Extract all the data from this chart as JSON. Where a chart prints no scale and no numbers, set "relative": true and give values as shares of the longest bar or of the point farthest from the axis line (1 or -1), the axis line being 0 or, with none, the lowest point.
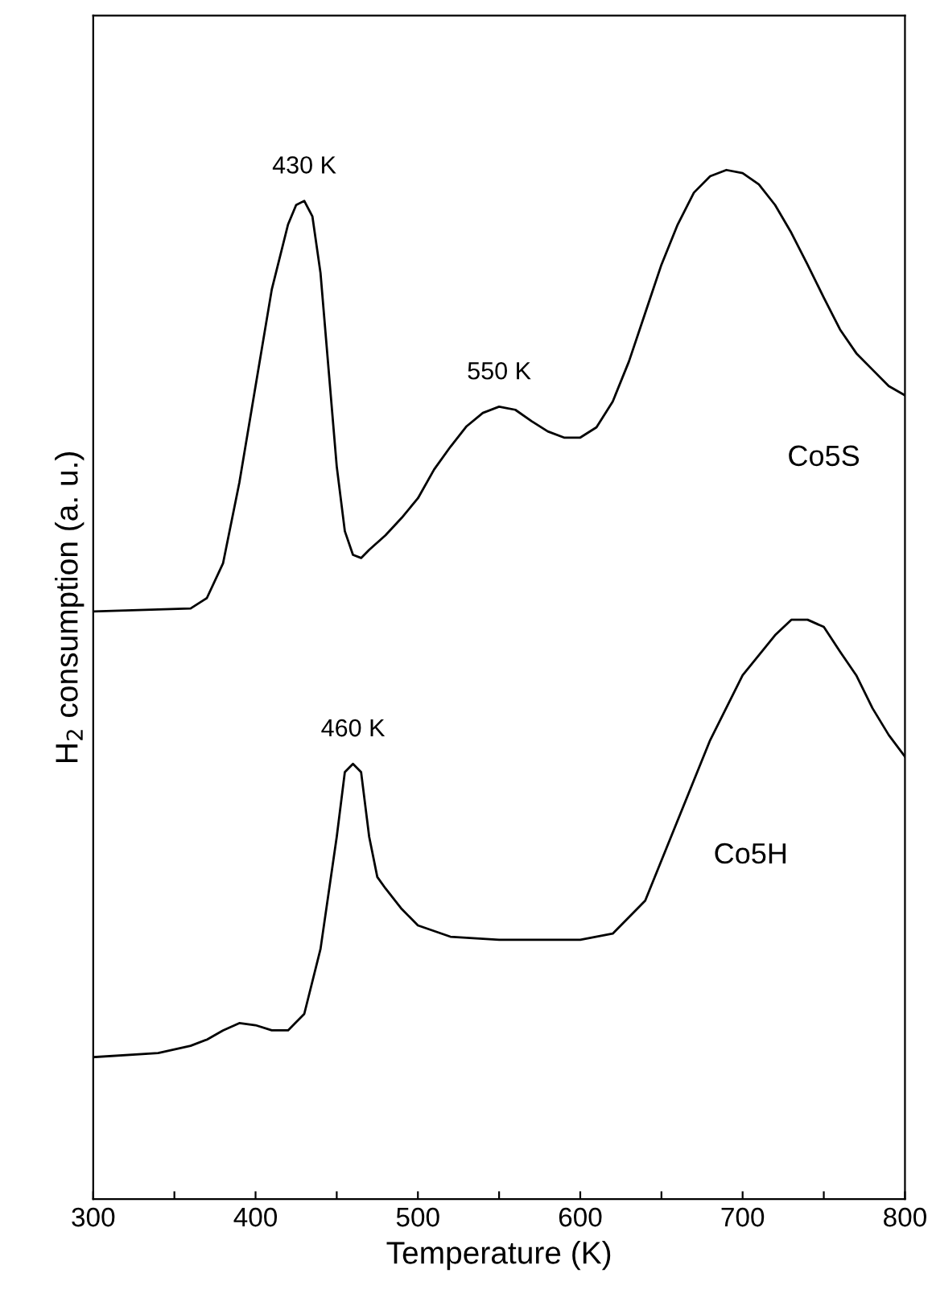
{
  "chart_data": {
    "type": "line",
    "relative": true,
    "xlabel": "Temperature (K)",
    "ylabel": "H$_{2}$ consumption (a. u.)",
    "xlim": [
      300,
      800
    ],
    "xticks": [
      300,
      {
        "value": 350,
        "label": null
      },
      400,
      {
        "value": 450,
        "label": null
      },
      500,
      {
        "value": 550,
        "label": null
      },
      600,
      {
        "value": 650,
        "label": null
      },
      700,
      {
        "value": 750,
        "label": null
      },
      800
    ],
    "legend": false,
    "grid": false,
    "marker": "none",
    "line_style": "solid",
    "tick_labels": "x",
    "series": [
      {
        "name": "Co5S",
        "color": "#000000",
        "x": [
          300,
          360,
          370,
          380,
          390,
          400,
          410,
          420,
          425,
          430,
          435,
          440,
          445,
          450,
          455,
          460,
          465,
          470,
          480,
          490,
          500,
          510,
          520,
          530,
          540,
          550,
          560,
          570,
          580,
          590,
          600,
          610,
          620,
          630,
          640,
          650,
          660,
          670,
          680,
          690,
          700,
          710,
          720,
          730,
          740,
          750,
          760,
          770,
          780,
          790,
          800
        ],
        "values": [
          0.571,
          0.574,
          0.584,
          0.618,
          0.696,
          0.79,
          0.884,
          0.947,
          0.966,
          0.97,
          0.955,
          0.9,
          0.806,
          0.712,
          0.649,
          0.626,
          0.623,
          0.631,
          0.645,
          0.662,
          0.681,
          0.709,
          0.731,
          0.751,
          0.764,
          0.77,
          0.767,
          0.756,
          0.746,
          0.74,
          0.74,
          0.75,
          0.775,
          0.814,
          0.861,
          0.908,
          0.947,
          0.978,
          0.994,
          1.0,
          0.997,
          0.986,
          0.966,
          0.939,
          0.908,
          0.876,
          0.845,
          0.822,
          0.806,
          0.79,
          0.781
        ]
      },
      {
        "name": "Co5H",
        "color": "#000000",
        "x": [
          300,
          340,
          360,
          370,
          380,
          390,
          400,
          410,
          420,
          430,
          440,
          450,
          455,
          460,
          465,
          470,
          475,
          480,
          490,
          500,
          520,
          550,
          600,
          620,
          640,
          660,
          680,
          700,
          720,
          730,
          740,
          750,
          760,
          770,
          780,
          790,
          800
        ],
        "values": [
          0.138,
          0.142,
          0.149,
          0.155,
          0.164,
          0.171,
          0.169,
          0.164,
          0.164,
          0.18,
          0.243,
          0.352,
          0.415,
          0.423,
          0.415,
          0.352,
          0.313,
          0.302,
          0.282,
          0.266,
          0.255,
          0.252,
          0.252,
          0.258,
          0.29,
          0.368,
          0.446,
          0.509,
          0.548,
          0.563,
          0.563,
          0.556,
          0.532,
          0.509,
          0.477,
          0.451,
          0.43
        ]
      }
    ],
    "annotations": [
      {
        "text": "430 K",
        "x": 430,
        "y": 0.97
      },
      {
        "text": "550 K",
        "x": 550,
        "y": 0.77
      },
      {
        "text": "460 K",
        "x": 460,
        "y": 0.423
      }
    ]
  }
}
